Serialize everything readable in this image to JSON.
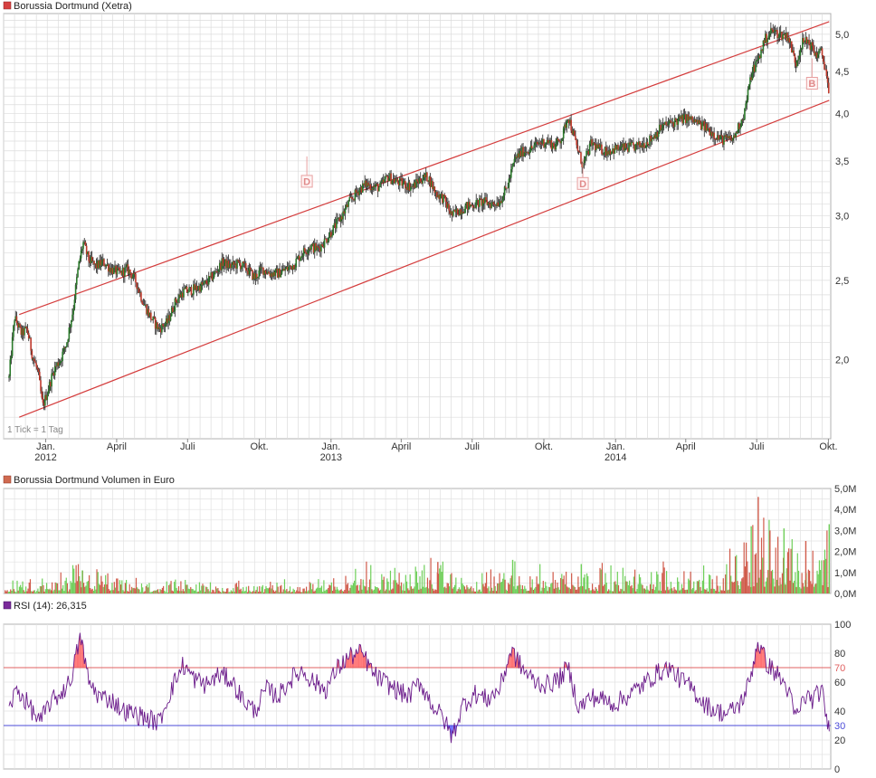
{
  "chart_data": [
    {
      "type": "candlestick",
      "title": "Borussia Dortmund (Xetra)",
      "scale": "log",
      "ylim": [
        1.6,
        5.3
      ],
      "y_ticks": [
        "2,0",
        "2,5",
        "3,0",
        "3,5",
        "4,0",
        "4,5",
        "5,0"
      ],
      "x_ticks": [
        "Jan.",
        "April",
        "Juli",
        "Okt.",
        "Jan.",
        "April",
        "Juli",
        "Okt.",
        "Jan.",
        "April",
        "Juli",
        "Okt."
      ],
      "x_years": [
        "2012",
        "2013",
        "2014"
      ],
      "note": "1 Tick = 1 Tag",
      "series": [
        {
          "values": [
            [
              "2011-11-15",
              1.9
            ],
            [
              "2011-11-22",
              2.25
            ],
            [
              "2011-12-01",
              2.15
            ],
            [
              "2011-12-08",
              2.18
            ],
            [
              "2011-12-15",
              2.02
            ],
            [
              "2011-12-22",
              1.93
            ],
            [
              "2011-12-28",
              1.75
            ],
            [
              "2012-01-05",
              1.85
            ],
            [
              "2012-01-12",
              1.95
            ],
            [
              "2012-01-20",
              2.0
            ],
            [
              "2012-01-28",
              2.1
            ],
            [
              "2012-02-05",
              2.3
            ],
            [
              "2012-02-12",
              2.6
            ],
            [
              "2012-02-18",
              2.78
            ],
            [
              "2012-02-25",
              2.65
            ],
            [
              "2012-03-05",
              2.6
            ],
            [
              "2012-03-15",
              2.63
            ],
            [
              "2012-03-25",
              2.58
            ],
            [
              "2012-04-05",
              2.55
            ],
            [
              "2012-04-15",
              2.58
            ],
            [
              "2012-04-25",
              2.5
            ],
            [
              "2012-05-05",
              2.35
            ],
            [
              "2012-05-15",
              2.25
            ],
            [
              "2012-05-25",
              2.18
            ],
            [
              "2012-06-05",
              2.22
            ],
            [
              "2012-06-15",
              2.35
            ],
            [
              "2012-06-25",
              2.42
            ],
            [
              "2012-07-05",
              2.43
            ],
            [
              "2012-07-15",
              2.45
            ],
            [
              "2012-07-25",
              2.48
            ],
            [
              "2012-08-05",
              2.55
            ],
            [
              "2012-08-15",
              2.63
            ],
            [
              "2012-08-25",
              2.6
            ],
            [
              "2012-09-05",
              2.62
            ],
            [
              "2012-09-15",
              2.58
            ],
            [
              "2012-09-25",
              2.52
            ],
            [
              "2012-10-05",
              2.58
            ],
            [
              "2012-10-15",
              2.55
            ],
            [
              "2012-10-25",
              2.55
            ],
            [
              "2012-11-05",
              2.58
            ],
            [
              "2012-11-15",
              2.62
            ],
            [
              "2012-11-25",
              2.7
            ],
            [
              "2012-12-05",
              2.75
            ],
            [
              "2012-12-15",
              2.73
            ],
            [
              "2012-12-25",
              2.8
            ],
            [
              "2013-01-05",
              2.9
            ],
            [
              "2013-01-15",
              3.0
            ],
            [
              "2013-01-25",
              3.12
            ],
            [
              "2013-02-05",
              3.22
            ],
            [
              "2013-02-15",
              3.28
            ],
            [
              "2013-02-25",
              3.25
            ],
            [
              "2013-03-05",
              3.25
            ],
            [
              "2013-03-15",
              3.35
            ],
            [
              "2013-03-25",
              3.3
            ],
            [
              "2013-04-05",
              3.28
            ],
            [
              "2013-04-15",
              3.25
            ],
            [
              "2013-04-25",
              3.32
            ],
            [
              "2013-05-05",
              3.35
            ],
            [
              "2013-05-15",
              3.2
            ],
            [
              "2013-05-25",
              3.15
            ],
            [
              "2013-06-05",
              3.0
            ],
            [
              "2013-06-15",
              3.05
            ],
            [
              "2013-06-25",
              3.08
            ],
            [
              "2013-07-05",
              3.1
            ],
            [
              "2013-07-15",
              3.12
            ],
            [
              "2013-07-25",
              3.1
            ],
            [
              "2013-08-05",
              3.12
            ],
            [
              "2013-08-15",
              3.25
            ],
            [
              "2013-08-25",
              3.52
            ],
            [
              "2013-09-05",
              3.6
            ],
            [
              "2013-09-15",
              3.62
            ],
            [
              "2013-09-25",
              3.68
            ],
            [
              "2013-10-05",
              3.7
            ],
            [
              "2013-10-15",
              3.65
            ],
            [
              "2013-10-25",
              3.75
            ],
            [
              "2013-11-01",
              3.98
            ],
            [
              "2013-11-10",
              3.7
            ],
            [
              "2013-11-20",
              3.45
            ],
            [
              "2013-12-01",
              3.68
            ],
            [
              "2013-12-10",
              3.62
            ],
            [
              "2013-12-20",
              3.6
            ],
            [
              "2014-01-01",
              3.62
            ],
            [
              "2014-01-15",
              3.63
            ],
            [
              "2014-02-01",
              3.65
            ],
            [
              "2014-02-15",
              3.72
            ],
            [
              "2014-03-01",
              3.85
            ],
            [
              "2014-03-15",
              3.9
            ],
            [
              "2014-04-01",
              3.95
            ],
            [
              "2014-04-15",
              3.9
            ],
            [
              "2014-05-01",
              3.82
            ],
            [
              "2014-05-15",
              3.72
            ],
            [
              "2014-06-01",
              3.72
            ],
            [
              "2014-06-15",
              4.0
            ],
            [
              "2014-06-25",
              4.5
            ],
            [
              "2014-07-05",
              4.7
            ],
            [
              "2014-07-10",
              4.9
            ],
            [
              "2014-07-20",
              5.05
            ],
            [
              "2014-07-30",
              5.0
            ],
            [
              "2014-08-10",
              4.98
            ],
            [
              "2014-08-20",
              4.6
            ],
            [
              "2014-08-28",
              4.88
            ],
            [
              "2014-09-05",
              4.9
            ],
            [
              "2014-09-15",
              4.72
            ],
            [
              "2014-09-22",
              4.75
            ],
            [
              "2014-09-28",
              4.5
            ],
            [
              "2014-10-02",
              4.15
            ]
          ]
        }
      ],
      "channel_upper": [
        [
          "2011-11-28",
          2.27
        ],
        [
          "2014-10-02",
          5.18
        ]
      ],
      "channel_lower": [
        [
          "2011-11-28",
          1.7
        ],
        [
          "2014-10-02",
          4.15
        ]
      ],
      "signals": [
        {
          "label": "D",
          "date": "2012-12-01",
          "value": 3.3
        },
        {
          "label": "D",
          "date": "2013-11-20",
          "value": 3.28
        },
        {
          "label": "B",
          "date": "2014-09-10",
          "value": 4.35
        }
      ],
      "colors": {
        "channel": "#d43c3c",
        "grid": "#dcdcdc",
        "up": "#2a7a2a",
        "down": "#c0392b",
        "wick": "#222222"
      }
    },
    {
      "type": "bar",
      "title": "Borussia Dortmund Volumen in Euro",
      "ylim": [
        0,
        5.0
      ],
      "y_unit": "M",
      "y_ticks": [
        "0,0M",
        "1,0M",
        "2,0M",
        "3,0M",
        "4,0M",
        "5,0M"
      ],
      "levels": [
        [
          "2011-11-15",
          0.4
        ],
        [
          "2012-01-01",
          0.35
        ],
        [
          "2012-02-15",
          0.8
        ],
        [
          "2012-04-01",
          0.4
        ],
        [
          "2012-06-01",
          0.3
        ],
        [
          "2012-08-01",
          0.35
        ],
        [
          "2012-10-01",
          0.3
        ],
        [
          "2012-12-01",
          0.4
        ],
        [
          "2013-02-01",
          0.7
        ],
        [
          "2013-04-01",
          0.8
        ],
        [
          "2013-05-15",
          0.9
        ],
        [
          "2013-07-01",
          0.4
        ],
        [
          "2013-08-20",
          0.8
        ],
        [
          "2013-10-15",
          0.7
        ],
        [
          "2013-11-20",
          0.9
        ],
        [
          "2014-01-15",
          0.6
        ],
        [
          "2014-03-15",
          0.8
        ],
        [
          "2014-05-15",
          0.5
        ],
        [
          "2014-06-25",
          2.0
        ],
        [
          "2014-07-20",
          2.2
        ],
        [
          "2014-09-01",
          1.2
        ],
        [
          "2014-10-02",
          2.0
        ]
      ],
      "peaks": [
        [
          "2012-02-17",
          1.1
        ],
        [
          "2013-05-18",
          1.5
        ],
        [
          "2013-08-22",
          1.6
        ],
        [
          "2013-11-18",
          1.4
        ],
        [
          "2014-06-24",
          3.2
        ],
        [
          "2014-07-03",
          4.6
        ],
        [
          "2014-07-18",
          3.0
        ],
        [
          "2014-08-05",
          3.1
        ],
        [
          "2014-09-02",
          2.5
        ],
        [
          "2014-10-02",
          3.3
        ]
      ],
      "colors": {
        "up": "#6fcf5a",
        "down": "#d05a4a"
      }
    },
    {
      "type": "line",
      "title": "RSI (14): 26,315",
      "ylim": [
        0,
        100
      ],
      "y_ticks": [
        "0",
        "20",
        "40",
        "60",
        "80",
        "100"
      ],
      "thresholds": [
        70,
        30
      ],
      "threshold_labels": [
        "70",
        "30"
      ],
      "last_value": 26.315,
      "series": [
        {
          "values": [
            [
              "2011-11-15",
              42
            ],
            [
              "2011-11-25",
              55
            ],
            [
              "2011-12-05",
              48
            ],
            [
              "2011-12-15",
              40
            ],
            [
              "2011-12-25",
              32
            ],
            [
              "2012-01-05",
              45
            ],
            [
              "2012-01-20",
              52
            ],
            [
              "2012-02-01",
              60
            ],
            [
              "2012-02-15",
              92
            ],
            [
              "2012-02-25",
              60
            ],
            [
              "2012-03-10",
              50
            ],
            [
              "2012-03-25",
              48
            ],
            [
              "2012-04-10",
              40
            ],
            [
              "2012-04-25",
              38
            ],
            [
              "2012-05-10",
              35
            ],
            [
              "2012-05-25",
              32
            ],
            [
              "2012-06-10",
              55
            ],
            [
              "2012-06-25",
              72
            ],
            [
              "2012-07-10",
              62
            ],
            [
              "2012-07-25",
              58
            ],
            [
              "2012-08-10",
              65
            ],
            [
              "2012-08-25",
              62
            ],
            [
              "2012-09-10",
              48
            ],
            [
              "2012-09-25",
              40
            ],
            [
              "2012-10-10",
              55
            ],
            [
              "2012-10-25",
              50
            ],
            [
              "2012-11-10",
              62
            ],
            [
              "2012-11-25",
              68
            ],
            [
              "2012-12-10",
              60
            ],
            [
              "2012-12-25",
              55
            ],
            [
              "2013-01-10",
              70
            ],
            [
              "2013-01-25",
              78
            ],
            [
              "2013-02-10",
              80
            ],
            [
              "2013-02-25",
              65
            ],
            [
              "2013-03-10",
              60
            ],
            [
              "2013-03-25",
              55
            ],
            [
              "2013-04-10",
              50
            ],
            [
              "2013-04-25",
              60
            ],
            [
              "2013-05-10",
              45
            ],
            [
              "2013-05-25",
              35
            ],
            [
              "2013-06-05",
              22
            ],
            [
              "2013-06-20",
              45
            ],
            [
              "2013-07-05",
              52
            ],
            [
              "2013-07-20",
              48
            ],
            [
              "2013-08-05",
              55
            ],
            [
              "2013-08-20",
              82
            ],
            [
              "2013-09-05",
              68
            ],
            [
              "2013-09-20",
              60
            ],
            [
              "2013-10-05",
              58
            ],
            [
              "2013-10-20",
              62
            ],
            [
              "2013-11-01",
              70
            ],
            [
              "2013-11-15",
              42
            ],
            [
              "2013-12-01",
              50
            ],
            [
              "2013-12-15",
              48
            ],
            [
              "2014-01-01",
              45
            ],
            [
              "2014-01-20",
              52
            ],
            [
              "2014-02-05",
              58
            ],
            [
              "2014-02-20",
              65
            ],
            [
              "2014-03-10",
              70
            ],
            [
              "2014-03-25",
              62
            ],
            [
              "2014-04-10",
              55
            ],
            [
              "2014-04-25",
              45
            ],
            [
              "2014-05-10",
              40
            ],
            [
              "2014-05-25",
              38
            ],
            [
              "2014-06-10",
              45
            ],
            [
              "2014-06-22",
              60
            ],
            [
              "2014-07-02",
              88
            ],
            [
              "2014-07-15",
              72
            ],
            [
              "2014-07-28",
              65
            ],
            [
              "2014-08-10",
              55
            ],
            [
              "2014-08-20",
              35
            ],
            [
              "2014-09-01",
              50
            ],
            [
              "2014-09-12",
              48
            ],
            [
              "2014-09-22",
              55
            ],
            [
              "2014-10-02",
              26
            ]
          ]
        }
      ],
      "colors": {
        "line": "#6a1a8a",
        "upper": "#e06060",
        "lower": "#4b4bd8",
        "fill_high": "#ff4444",
        "fill_low": "#4040ff"
      }
    }
  ]
}
